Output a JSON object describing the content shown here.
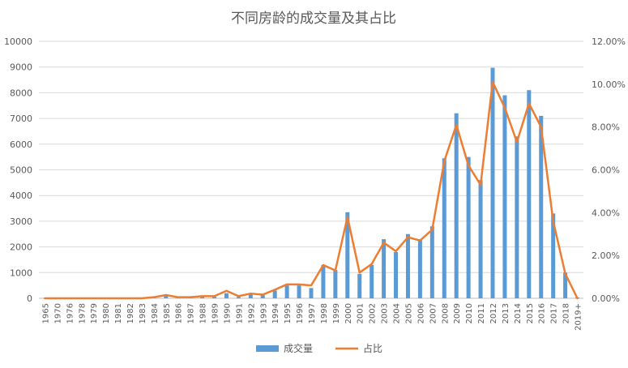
{
  "chart_data": {
    "type": "bar+line",
    "title": "不同房龄的成交量及其占比",
    "categories": [
      "1965",
      "1970",
      "1976",
      "1978",
      "1979",
      "1980",
      "1981",
      "1982",
      "1983",
      "1984",
      "1985",
      "1986",
      "1987",
      "1988",
      "1989",
      "1990",
      "1991",
      "1992",
      "1993",
      "1994",
      "1995",
      "1996",
      "1997",
      "1998",
      "1999",
      "2000",
      "2001",
      "2002",
      "2003",
      "2004",
      "2005",
      "2006",
      "2007",
      "2008",
      "2009",
      "2010",
      "2011",
      "2012",
      "2013",
      "2014",
      "2015",
      "2016",
      "2017",
      "2018",
      "2019+"
    ],
    "series": [
      {
        "name": "成交量",
        "type": "bar",
        "axis": "left",
        "color": "#5B9BD5",
        "values": [
          10,
          10,
          10,
          10,
          10,
          10,
          20,
          10,
          10,
          50,
          100,
          50,
          40,
          60,
          60,
          200,
          50,
          150,
          120,
          300,
          500,
          500,
          400,
          1300,
          1100,
          3350,
          950,
          1300,
          2300,
          1800,
          2500,
          2300,
          2800,
          5450,
          7200,
          5500,
          4600,
          8970,
          7900,
          6300,
          8100,
          7100,
          3300,
          1000,
          30
        ]
      },
      {
        "name": "占比",
        "type": "line",
        "axis": "right",
        "color": "#ED7D31",
        "values": [
          0.0,
          0.0,
          0.0,
          0.0,
          0.0,
          0.0,
          0.0,
          0.0,
          0.0,
          0.05,
          0.15,
          0.05,
          0.05,
          0.1,
          0.1,
          0.35,
          0.1,
          0.22,
          0.17,
          0.4,
          0.65,
          0.65,
          0.6,
          1.55,
          1.3,
          3.8,
          1.2,
          1.6,
          2.6,
          2.2,
          2.85,
          2.7,
          3.2,
          6.4,
          8.1,
          6.2,
          5.3,
          10.1,
          8.9,
          7.3,
          9.1,
          8.0,
          3.6,
          1.15,
          0.0
        ]
      }
    ],
    "y_left": {
      "min": 0,
      "max": 10000,
      "step": 1000,
      "ticks": [
        "0",
        "1000",
        "2000",
        "3000",
        "4000",
        "5000",
        "6000",
        "7000",
        "8000",
        "9000",
        "10000"
      ]
    },
    "y_right": {
      "min": 0,
      "max": 12,
      "step": 2,
      "ticks": [
        "0.00%",
        "2.00%",
        "4.00%",
        "6.00%",
        "8.00%",
        "10.00%",
        "12.00%"
      ]
    },
    "grid": true,
    "legend_position": "bottom",
    "legend": [
      {
        "label": "成交量",
        "kind": "bar",
        "color": "#5B9BD5"
      },
      {
        "label": "占比",
        "kind": "line",
        "color": "#ED7D31"
      }
    ]
  }
}
